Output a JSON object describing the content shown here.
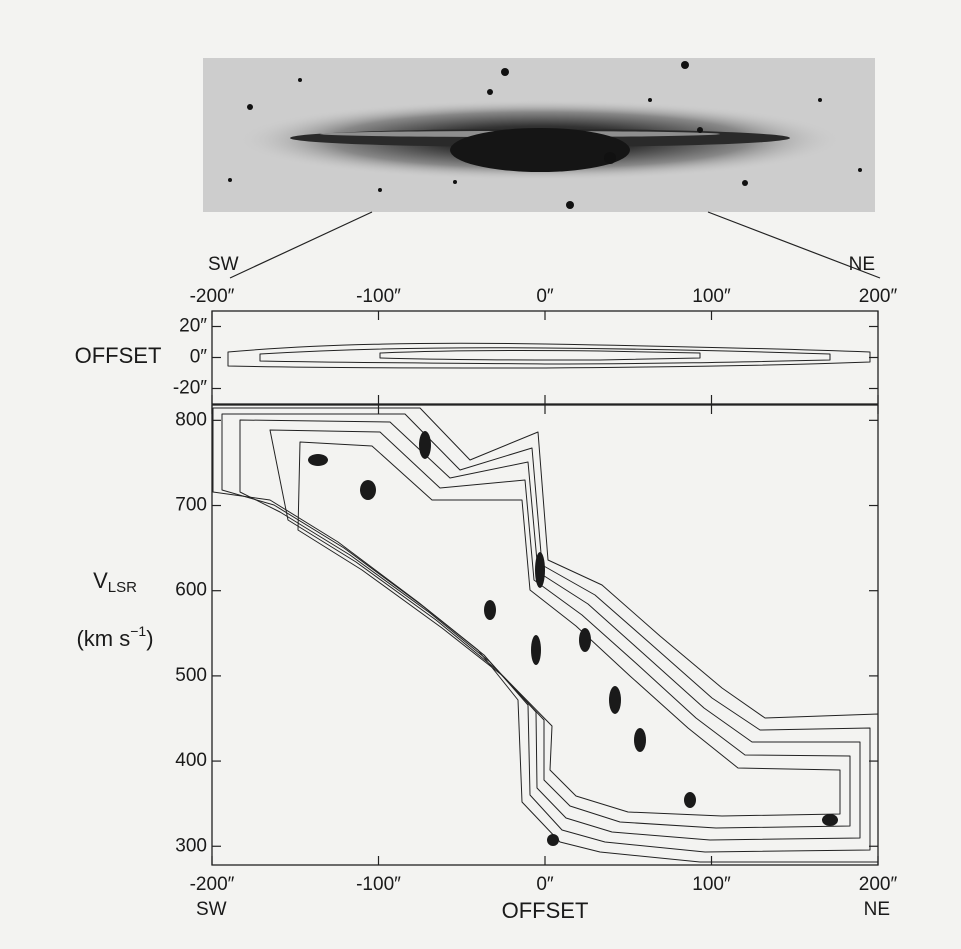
{
  "directions": {
    "left": "SW",
    "right": "NE"
  },
  "chart_data": [
    {
      "type": "contour",
      "ylabel": "OFFSET",
      "xlim": [
        -200,
        200
      ],
      "xticks": [
        {
          "value": -200,
          "label": "-200″"
        },
        {
          "value": -100,
          "label": "-100″"
        },
        {
          "value": 0,
          "label": "0″"
        },
        {
          "value": 100,
          "label": "100″"
        },
        {
          "value": 200,
          "label": "200″"
        }
      ],
      "ylim": [
        -30,
        30
      ],
      "yticks": [
        {
          "value": 20,
          "label": "20″"
        },
        {
          "value": 0,
          "label": "0″"
        },
        {
          "value": -20,
          "label": "-20″"
        }
      ]
    },
    {
      "type": "contour",
      "xlabel": "OFFSET",
      "ylabel": "V",
      "ylabel_sub": "LSR",
      "ylabel_units": "(km s",
      "ylabel_units_sup": "−1",
      "ylabel_units_end": ")",
      "xlim": [
        -200,
        200
      ],
      "xticks": [
        {
          "value": -200,
          "label": "-200″"
        },
        {
          "value": -100,
          "label": "-100″"
        },
        {
          "value": 0,
          "label": "0″"
        },
        {
          "value": 100,
          "label": "100″"
        },
        {
          "value": 200,
          "label": "200″"
        }
      ],
      "ylim": [
        278,
        818
      ],
      "yticks": [
        300,
        400,
        500,
        600,
        700,
        800
      ]
    }
  ]
}
